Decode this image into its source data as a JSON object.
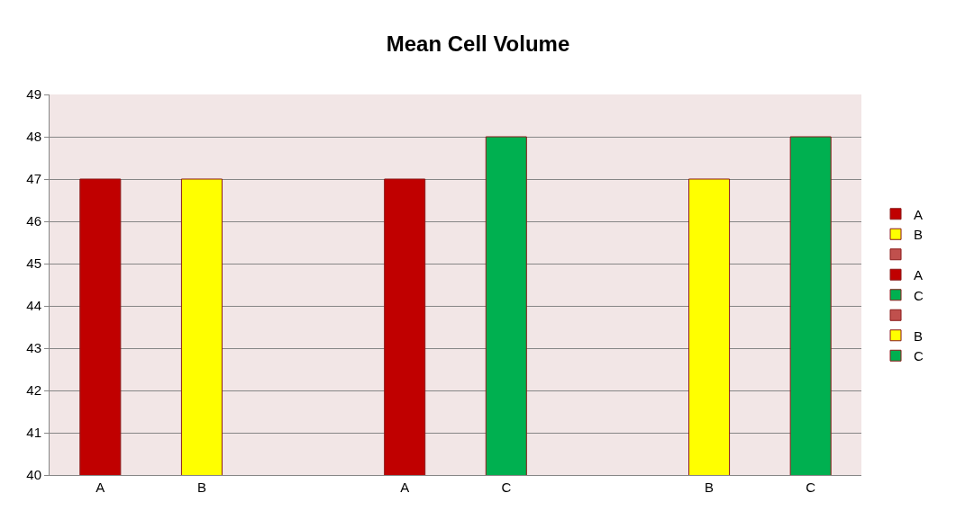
{
  "chart_data": {
    "type": "bar",
    "title": "Mean Cell Volume",
    "categories": [
      "A",
      "B",
      null,
      "A",
      "C",
      null,
      "B",
      "C"
    ],
    "series": [
      {
        "name": "A",
        "color": "#c00000",
        "values": [
          47,
          null,
          null,
          null,
          null,
          null,
          null,
          null
        ]
      },
      {
        "name": "B",
        "color": "#ffff00",
        "values": [
          null,
          47,
          null,
          null,
          null,
          null,
          null,
          null
        ]
      },
      {
        "color": "#c0504d",
        "values": [
          null,
          null,
          null,
          null,
          null,
          null,
          null,
          null
        ]
      },
      {
        "name": "A",
        "color": "#c00000",
        "values": [
          null,
          null,
          null,
          47,
          null,
          null,
          null,
          null
        ]
      },
      {
        "name": "C",
        "color": "#00b050",
        "values": [
          null,
          null,
          null,
          null,
          48,
          null,
          null,
          null
        ]
      },
      {
        "color": "#c0504d",
        "values": [
          null,
          null,
          null,
          null,
          null,
          null,
          null,
          null
        ]
      },
      {
        "name": "B",
        "color": "#ffff00",
        "values": [
          null,
          null,
          null,
          null,
          null,
          null,
          47,
          null
        ]
      },
      {
        "name": "C",
        "color": "#00b050",
        "values": [
          null,
          null,
          null,
          null,
          null,
          null,
          null,
          48
        ]
      }
    ],
    "ylim": [
      40,
      49
    ],
    "yticks": [
      40,
      41,
      42,
      43,
      44,
      45,
      46,
      47,
      48,
      49
    ],
    "grid": "y",
    "legend": "right"
  }
}
